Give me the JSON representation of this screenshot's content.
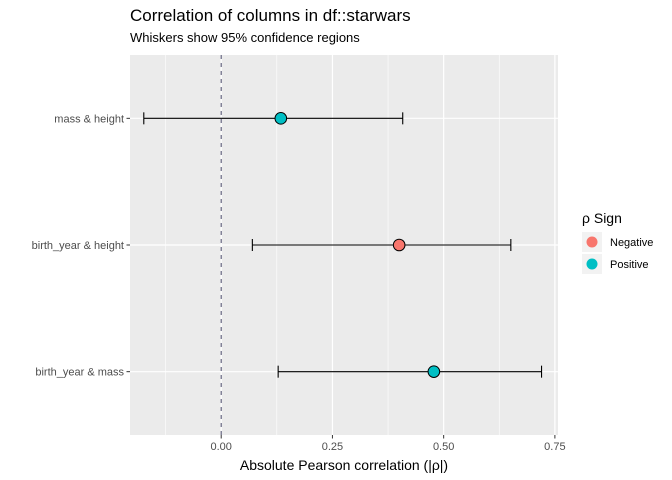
{
  "chart_data": {
    "type": "scatter",
    "title": "Correlation of columns in df::starwars",
    "subtitle": "Whiskers show 95% confidence regions",
    "xlabel": "Absolute Pearson correlation (|ρ|)",
    "ylabel": "",
    "xlim": [
      -0.205,
      0.757
    ],
    "x_ticks": [
      0.0,
      0.25,
      0.5,
      0.75
    ],
    "x_tick_labels": [
      "0.00",
      "0.25",
      "0.50",
      "0.75"
    ],
    "grid": true,
    "reference_line": {
      "x": 0,
      "style": "dashed",
      "color": "#5c5c7a"
    },
    "categories": [
      "mass & height",
      "birth_year & height",
      "birth_year & mass"
    ],
    "points": [
      {
        "label": "mass & height",
        "estimate": 0.134,
        "ci_low": -0.174,
        "ci_high": 0.408,
        "sign": "Positive"
      },
      {
        "label": "birth_year & height",
        "estimate": 0.4,
        "ci_low": 0.07,
        "ci_high": 0.651,
        "sign": "Negative"
      },
      {
        "label": "birth_year & mass",
        "estimate": 0.478,
        "ci_low": 0.128,
        "ci_high": 0.72,
        "sign": "Positive"
      }
    ],
    "legend": {
      "title": "ρ Sign",
      "placement": "right",
      "entries": [
        {
          "name": "Negative",
          "color": "#F8766D"
        },
        {
          "name": "Positive",
          "color": "#00BFC4"
        }
      ]
    },
    "panel_background": "#EBEBEB",
    "grid_color": "#FFFFFF"
  }
}
